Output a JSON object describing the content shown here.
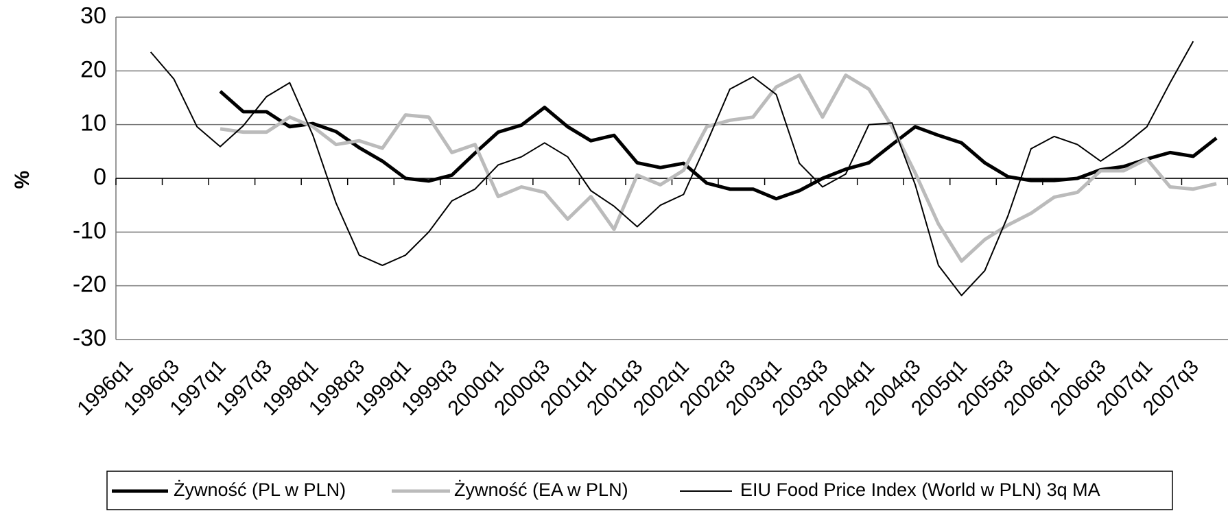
{
  "chart_data": {
    "type": "line",
    "y_label": "%",
    "categories": [
      "1996q1",
      null,
      "1996q3",
      null,
      "1997q1",
      null,
      "1997q3",
      null,
      "1998q1",
      null,
      "1998q3",
      null,
      "1999q1",
      null,
      "1999q3",
      null,
      "2000q1",
      null,
      "2000q3",
      null,
      "2001q1",
      null,
      "2001q3",
      null,
      "2002q1",
      null,
      "2002q3",
      null,
      "2003q1",
      null,
      "2003q3",
      null,
      "2004q1",
      null,
      "2004q3",
      null,
      "2005q1",
      null,
      "2005q3",
      null,
      "2006q1",
      null,
      "2006q3",
      null,
      "2007q1",
      null,
      "2007q3",
      null
    ],
    "series": [
      {
        "name": "Żywność (PL w PLN)",
        "color": "#000000",
        "width": 5,
        "values": [
          null,
          null,
          null,
          null,
          16.2,
          12.4,
          12.4,
          9.6,
          10.2,
          8.7,
          5.7,
          3.2,
          0,
          -0.5,
          0.6,
          4.7,
          8.6,
          9.9,
          13.2,
          9.6,
          7.0,
          8.0,
          2.9,
          2.0,
          2.8,
          -0.9,
          -2.0,
          -2.0,
          -3.8,
          -2.3,
          0,
          1.7,
          2.9,
          6.3,
          9.6,
          8.0,
          6.6,
          2.9,
          0.3,
          -0.4,
          -0.4,
          0,
          1.6,
          2.2,
          3.6,
          4.8,
          4.1,
          7.5
        ]
      },
      {
        "name": "Żywność (EA w PLN)",
        "color": "#bbbbbb",
        "width": 5,
        "values": [
          null,
          null,
          null,
          null,
          9.2,
          8.6,
          8.6,
          11.4,
          9.6,
          6.3,
          7.0,
          5.6,
          11.8,
          11.4,
          4.8,
          6.3,
          -3.4,
          -1.6,
          -2.6,
          -7.6,
          -3.4,
          -9.5,
          0.6,
          -1.2,
          1.5,
          9.6,
          10.8,
          11.4,
          17.0,
          19.2,
          11.4,
          19.2,
          16.6,
          9.6,
          1.0,
          -8.5,
          -15.4,
          -11.4,
          -8.7,
          -6.5,
          -3.5,
          -2.6,
          1.4,
          1.4,
          3.6,
          -1.6,
          -2.0,
          -1.0
        ]
      },
      {
        "name": "EIU Food Price Index (World w PLN) 3q MA",
        "color": "#000000",
        "width": 2,
        "values": [
          null,
          23.5,
          18.5,
          9.6,
          5.9,
          9.8,
          15.2,
          17.8,
          8.0,
          -4.6,
          -14.3,
          -16.2,
          -14.3,
          -10.0,
          -4.2,
          -2.0,
          2.5,
          4.0,
          6.6,
          4.0,
          -2.3,
          -5.2,
          -9.0,
          -5.0,
          -3.0,
          6.6,
          16.6,
          18.9,
          15.6,
          2.8,
          -1.6,
          0.8,
          10.0,
          10.3,
          -1.2,
          -16.2,
          -21.8,
          -17.2,
          -7.0,
          5.5,
          7.8,
          6.3,
          3.2,
          6.1,
          9.6,
          17.8,
          25.5,
          null
        ]
      }
    ],
    "ylim": [
      -30,
      30
    ],
    "yticks": [
      -30,
      -20,
      -10,
      0,
      10,
      20,
      30
    ],
    "grid": true,
    "legend": "bottom"
  }
}
